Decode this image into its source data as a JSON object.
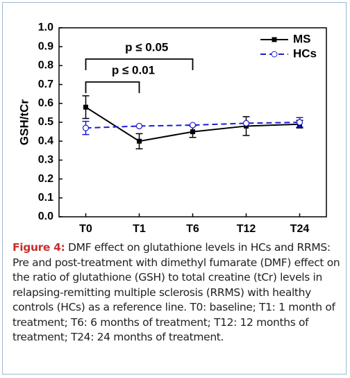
{
  "chart_data": {
    "type": "line",
    "y_label": "GSH/tCr",
    "categories": [
      "T0",
      "T1",
      "T6",
      "T12",
      "T24"
    ],
    "series": [
      {
        "name": "MS",
        "color": "#000000",
        "values": [
          0.58,
          0.4,
          0.45,
          0.48,
          0.49
        ],
        "errors": [
          0.06,
          0.04,
          0.03,
          0.05,
          0.02
        ]
      },
      {
        "name": "HCs",
        "color": "#1a1ad6",
        "values": [
          0.47,
          0.48,
          0.485,
          0.495,
          0.5
        ],
        "errors": [
          0.035,
          null,
          null,
          null,
          0.025
        ]
      }
    ],
    "ylim": [
      0,
      1
    ],
    "yticks": [
      {
        "value": 0,
        "label": "0.0"
      },
      0.1,
      0.2,
      0.3,
      0.4,
      0.5,
      0.6,
      0.7,
      0.8,
      0.9,
      {
        "value": 1,
        "label": "1.0"
      }
    ],
    "annotations": [
      {
        "text": "p ≤ 0.05",
        "start": "T0",
        "end": "T6"
      },
      {
        "text": "p ≤ 0.01",
        "start": "T0",
        "end": "T1"
      }
    ],
    "legend": "top-right"
  },
  "caption": {
    "label": "Figure 4:",
    "text": "DMF effect on glutathione levels in HCs and RRMS: Pre and post-treatment with dimethyl fumarate (DMF) effect on the ratio of glutathione (GSH) to total creatine (tCr) levels in relapsing-remitting multiple sclerosis (RRMS) with healthy controls (HCs) as a reference line. T0: baseline; T1: 1 month of treatment; T6: 6 months of treatment; T12: 12 months of treatment; T24: 24 months of treatment."
  }
}
